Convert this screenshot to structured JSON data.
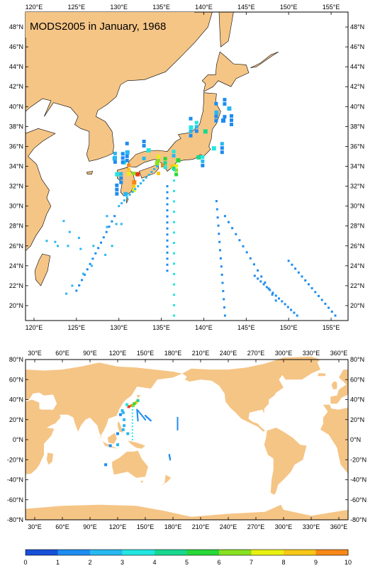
{
  "map1": {
    "title": "MODS2005 in January, 1968",
    "lon_labels": [
      "120°E",
      "125°E",
      "130°E",
      "135°E",
      "140°E",
      "145°E",
      "150°E",
      "155°E"
    ],
    "lat_labels": [
      "48°N",
      "46°N",
      "44°N",
      "42°N",
      "40°N",
      "38°N",
      "36°N",
      "34°N",
      "32°N",
      "30°N",
      "28°N",
      "26°N",
      "24°N",
      "22°N",
      "20°N"
    ],
    "lon_range": [
      119,
      157
    ],
    "lat_range": [
      18.5,
      49.5
    ],
    "land_color": "#f5c586",
    "observations": [
      {
        "lon": 140.2,
        "lat": 37.5,
        "v": 4
      },
      {
        "lon": 138.5,
        "lat": 37.9,
        "v": 3
      },
      {
        "lon": 141.2,
        "lat": 35.8,
        "v": 3
      },
      {
        "lon": 135.2,
        "lat": 34.1,
        "v": 9
      },
      {
        "lon": 136.3,
        "lat": 34.0,
        "v": 8
      },
      {
        "lon": 132.2,
        "lat": 33.2,
        "v": 10
      },
      {
        "lon": 131.8,
        "lat": 32.4,
        "v": 9
      },
      {
        "lon": 134.5,
        "lat": 34.3,
        "v": 6
      },
      {
        "lon": 137.0,
        "lat": 34.6,
        "v": 5
      },
      {
        "lon": 139.4,
        "lat": 34.9,
        "v": 4
      },
      {
        "lon": 130.6,
        "lat": 34.4,
        "v": 3
      },
      {
        "lon": 131.0,
        "lat": 35.4,
        "v": 2
      },
      {
        "lon": 129.5,
        "lat": 34.8,
        "v": 2
      },
      {
        "lon": 133.5,
        "lat": 35.6,
        "v": 3
      },
      {
        "lon": 129.8,
        "lat": 33.2,
        "v": 3
      },
      {
        "lon": 130.8,
        "lat": 31.2,
        "v": 2
      },
      {
        "lon": 141.5,
        "lat": 39.4,
        "v": 2
      },
      {
        "lon": 142.3,
        "lat": 38.6,
        "v": 1
      },
      {
        "lon": 143.0,
        "lat": 39.8,
        "v": 2
      }
    ],
    "tracks": [
      {
        "lon0": 136.5,
        "lat0": 33.6,
        "lon1": 136.5,
        "lat1": 19.0,
        "v": 3
      },
      {
        "lon0": 135.7,
        "lat0": 32.0,
        "lon1": 135.7,
        "lat1": 23.5,
        "v": 1
      },
      {
        "lon0": 141.5,
        "lat0": 30.5,
        "lon1": 142.5,
        "lat1": 19.0,
        "v": 1
      },
      {
        "lon0": 142.5,
        "lat0": 29.0,
        "lon1": 148.5,
        "lat1": 20.5,
        "v": 1
      },
      {
        "lon0": 150.0,
        "lat0": 24.5,
        "lon1": 155.5,
        "lat1": 19.0,
        "v": 1
      },
      {
        "lon0": 146.0,
        "lat0": 23.0,
        "lon1": 151.0,
        "lat1": 19.0,
        "v": 1
      },
      {
        "lon0": 129.5,
        "lat0": 29.0,
        "lon1": 125.0,
        "lat1": 21.5,
        "v": 1
      },
      {
        "lon0": 134.5,
        "lat0": 34.0,
        "lon1": 130.0,
        "lat1": 30.0,
        "v": 2
      }
    ]
  },
  "map2": {
    "lon_labels": [
      "30°E",
      "60°E",
      "90°E",
      "120°E",
      "150°E",
      "180°E",
      "210°E",
      "240°E",
      "270°E",
      "300°E",
      "330°E",
      "360°E"
    ],
    "lat_labels": [
      "80°N",
      "60°N",
      "40°N",
      "20°N",
      "0°N",
      "-20°N",
      "-40°N",
      "-60°N",
      "-80°N"
    ],
    "lon_range": [
      20,
      370
    ],
    "lat_range": [
      -80,
      80
    ],
    "land_color": "#f5c586"
  },
  "colorbar": {
    "labels": [
      "0",
      "1",
      "2",
      "3",
      "4",
      "5",
      "6",
      "7",
      "8",
      "9",
      "10"
    ],
    "colors": [
      "#1750d8",
      "#1e8cf0",
      "#28b8f0",
      "#22e6e0",
      "#18d890",
      "#28d838",
      "#88e020",
      "#e8f010",
      "#f8c818",
      "#f88818",
      "#e83818"
    ]
  }
}
